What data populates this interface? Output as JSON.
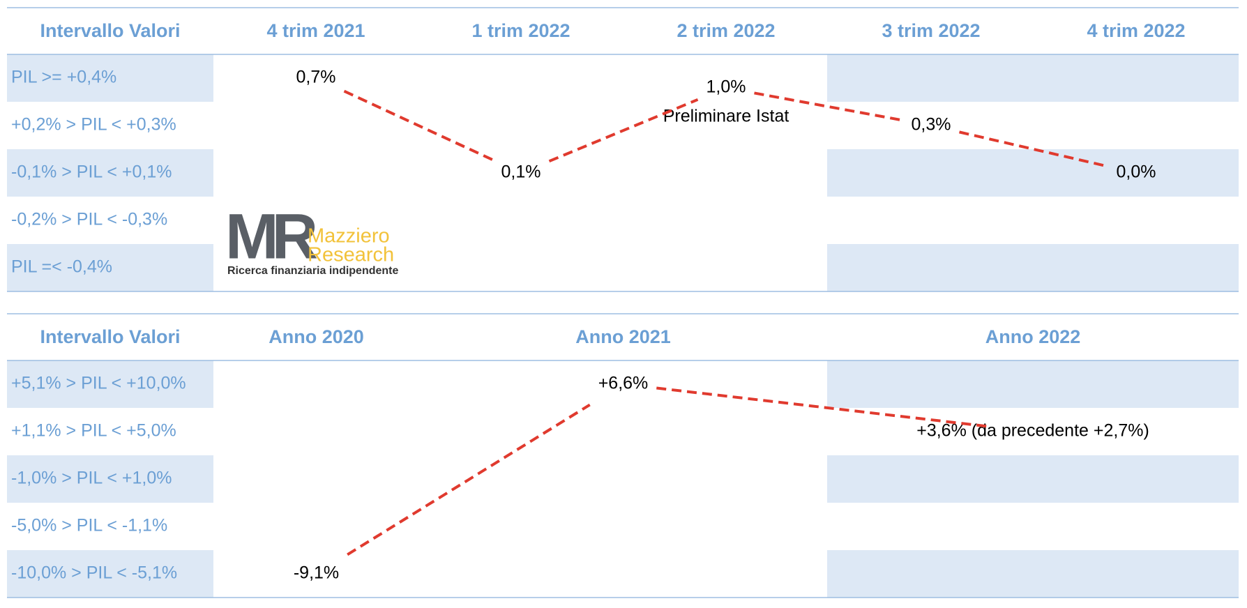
{
  "tables": [
    {
      "header": {
        "label": "Intervallo Valori",
        "columns": [
          "4 trim 2021",
          "1 trim 2022",
          "2 trim 2022",
          "3 trim 2022",
          "4 trim 2022"
        ]
      },
      "rows": [
        "PIL >= +0,4%",
        "+0,2% > PIL < +0,3%",
        "-0,1% > PIL < +0,1%",
        "-0,2% > PIL < -0,3%",
        "PIL =< -0,4%"
      ],
      "points": [
        {
          "column": 0,
          "row": 0,
          "label": "0,7%"
        },
        {
          "column": 1,
          "row": 2,
          "label": "0,1%"
        },
        {
          "column": 2,
          "row": 0,
          "label": "1,0%",
          "note": "Preliminare Istat"
        },
        {
          "column": 3,
          "row": 1,
          "label": "0,3%"
        },
        {
          "column": 4,
          "row": 2,
          "label": "0,0%"
        }
      ]
    },
    {
      "header": {
        "label": "Intervallo Valori",
        "columns": [
          "Anno 2020",
          "Anno 2021",
          "Anno 2022"
        ]
      },
      "rows": [
        "+5,1% > PIL < +10,0%",
        "+1,1% > PIL < +5,0%",
        "-1,0% > PIL < +1,0%",
        "-5,0% > PIL < -1,1%",
        "-10,0% > PIL < -5,1%"
      ],
      "points": [
        {
          "column": 0,
          "row": 4,
          "label": "-9,1%"
        },
        {
          "column": 1,
          "row": 0,
          "label": "+6,6%"
        },
        {
          "column": 2,
          "row": 1,
          "label": "+3,6% (da precedente +2,7%)"
        }
      ]
    }
  ],
  "logo": {
    "mark": "MR",
    "name_1": "Mazziero",
    "name_2": "Research",
    "tagline": "Ricerca finanziaria indipendente"
  }
}
